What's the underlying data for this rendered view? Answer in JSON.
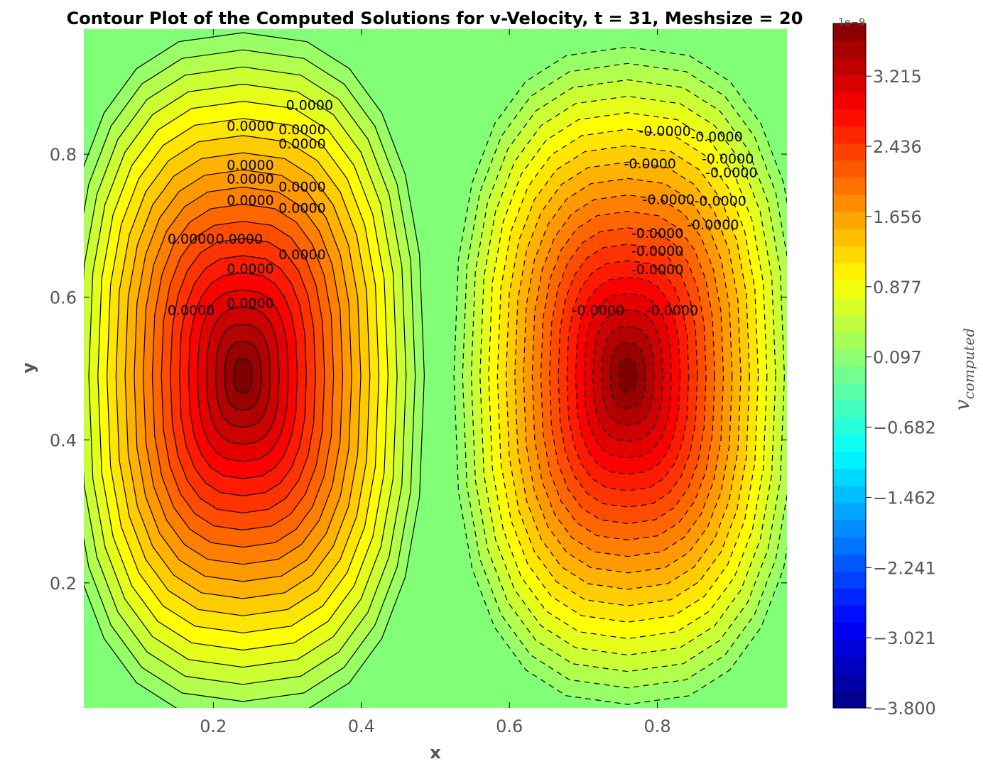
{
  "chart_data": {
    "type": "contour",
    "title": "Contour Plot of the Computed Solutions for v-Velocity, t = 31, Meshsize = 20",
    "xlabel": "x",
    "ylabel": "y",
    "colorbar_label": "v",
    "colorbar_label_sub": "computed",
    "colorbar_exponent": "1e−9",
    "xlim": [
      0.025,
      0.975
    ],
    "ylim": [
      0.025,
      0.975
    ],
    "x_ticks": [
      {
        "value": 0.2,
        "label": "0.2"
      },
      {
        "value": 0.4,
        "label": "0.4"
      },
      {
        "value": 0.6,
        "label": "0.6"
      },
      {
        "value": 0.8,
        "label": "0.8"
      }
    ],
    "y_ticks": [
      {
        "value": 0.2,
        "label": "0.2"
      },
      {
        "value": 0.4,
        "label": "0.4"
      },
      {
        "value": 0.6,
        "label": "0.6"
      },
      {
        "value": 0.8,
        "label": "0.8"
      }
    ],
    "colorbar_range": [
      -3.8,
      3.8
    ],
    "colorbar_ticks": [
      {
        "value": 3.215,
        "label": "3.215"
      },
      {
        "value": 2.436,
        "label": "2.436"
      },
      {
        "value": 1.656,
        "label": "1.656"
      },
      {
        "value": 0.877,
        "label": "0.877"
      },
      {
        "value": 0.097,
        "label": "0.097"
      },
      {
        "value": -0.682,
        "label": "−0.682"
      },
      {
        "value": -1.462,
        "label": "−1.462"
      },
      {
        "value": -2.241,
        "label": "−2.241"
      },
      {
        "value": -3.021,
        "label": "−3.021"
      },
      {
        "value": -3.8,
        "label": "−3.800"
      }
    ],
    "positive_peak": {
      "x": 0.24,
      "y": 0.49,
      "value": 3.8
    },
    "negative_peak": {
      "x": 0.76,
      "y": 0.49,
      "value": -3.8
    },
    "colormap": "jet",
    "contour_levels": 40,
    "contour_label_text": "0.0000",
    "contour_label_text_negative": "-0.0000",
    "contour_labels": [
      {
        "x": 0.33,
        "y": 0.862,
        "text": "0.0000"
      },
      {
        "x": 0.25,
        "y": 0.833,
        "text": "0.0000"
      },
      {
        "x": 0.32,
        "y": 0.828,
        "text": "0.0000"
      },
      {
        "x": 0.32,
        "y": 0.808,
        "text": "0.0000"
      },
      {
        "x": 0.25,
        "y": 0.778,
        "text": "0.0000"
      },
      {
        "x": 0.25,
        "y": 0.759,
        "text": "0.0000"
      },
      {
        "x": 0.32,
        "y": 0.748,
        "text": "0.0000"
      },
      {
        "x": 0.25,
        "y": 0.729,
        "text": "0.0000"
      },
      {
        "x": 0.32,
        "y": 0.718,
        "text": "0.0000"
      },
      {
        "x": 0.17,
        "y": 0.675,
        "text": "0.0000"
      },
      {
        "x": 0.235,
        "y": 0.675,
        "text": "0.0000"
      },
      {
        "x": 0.32,
        "y": 0.653,
        "text": "0.0000"
      },
      {
        "x": 0.25,
        "y": 0.633,
        "text": "0.0000"
      },
      {
        "x": 0.17,
        "y": 0.575,
        "text": "0.0000"
      },
      {
        "x": 0.25,
        "y": 0.585,
        "text": "0.0000"
      },
      {
        "x": 0.81,
        "y": 0.826,
        "text": "-0.0000"
      },
      {
        "x": 0.88,
        "y": 0.818,
        "text": "-0.0000"
      },
      {
        "x": 0.895,
        "y": 0.787,
        "text": "-0.0000"
      },
      {
        "x": 0.79,
        "y": 0.78,
        "text": "-0.0000"
      },
      {
        "x": 0.9,
        "y": 0.768,
        "text": "-0.0000"
      },
      {
        "x": 0.885,
        "y": 0.728,
        "text": "-0.0000"
      },
      {
        "x": 0.815,
        "y": 0.73,
        "text": "-0.0000"
      },
      {
        "x": 0.875,
        "y": 0.695,
        "text": "-0.0000"
      },
      {
        "x": 0.8,
        "y": 0.683,
        "text": "-0.0000"
      },
      {
        "x": 0.8,
        "y": 0.658,
        "text": "-0.0000"
      },
      {
        "x": 0.8,
        "y": 0.632,
        "text": "-0.0000"
      },
      {
        "x": 0.72,
        "y": 0.575,
        "text": "-0.0000"
      },
      {
        "x": 0.82,
        "y": 0.575,
        "text": "-0.0000"
      }
    ]
  }
}
